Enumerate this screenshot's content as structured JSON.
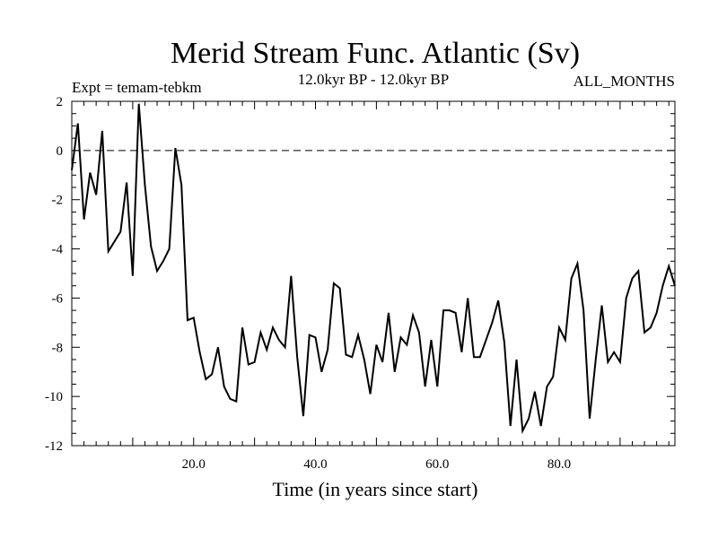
{
  "chart_data": {
    "type": "line",
    "title": "Merid Stream Func. Atlantic (Sv)",
    "subtitle_left": "Expt = temam-tebkm",
    "subtitle_center": "12.0kyr BP - 12.0kyr BP",
    "subtitle_right": "ALL_MONTHS",
    "xlabel": "Time (in years since start)",
    "ylabel": "",
    "xlim": [
      0,
      99
    ],
    "ylim": [
      -12,
      2
    ],
    "x_ticks": [
      {
        "value": 20,
        "label": "20.0"
      },
      {
        "value": 40,
        "label": "40.0"
      },
      {
        "value": 60,
        "label": "60.0"
      },
      {
        "value": 80,
        "label": "80.0"
      }
    ],
    "y_ticks": [
      {
        "value": 2,
        "label": "2"
      },
      {
        "value": 0,
        "label": "0"
      },
      {
        "value": -2,
        "label": "-2"
      },
      {
        "value": -4,
        "label": "-4"
      },
      {
        "value": -6,
        "label": "-6"
      },
      {
        "value": -8,
        "label": "-8"
      },
      {
        "value": -10,
        "label": "-10"
      },
      {
        "value": -12,
        "label": "-12"
      }
    ],
    "reference_line": 0,
    "series": [
      {
        "name": "Merid Stream Func. Atlantic",
        "color": "#000000",
        "x": [
          0,
          1,
          2,
          3,
          4,
          5,
          6,
          7,
          8,
          9,
          10,
          11,
          12,
          13,
          14,
          15,
          16,
          17,
          18,
          19,
          20,
          21,
          22,
          23,
          24,
          25,
          26,
          27,
          28,
          29,
          30,
          31,
          32,
          33,
          34,
          35,
          36,
          37,
          38,
          39,
          40,
          41,
          42,
          43,
          44,
          45,
          46,
          47,
          48,
          49,
          50,
          51,
          52,
          53,
          54,
          55,
          56,
          57,
          58,
          59,
          60,
          61,
          62,
          63,
          64,
          65,
          66,
          67,
          68,
          69,
          70,
          71,
          72,
          73,
          74,
          75,
          76,
          77,
          78,
          79,
          80,
          81,
          82,
          83,
          84,
          85,
          86,
          87,
          88,
          89,
          90,
          91,
          92,
          93,
          94,
          95,
          96,
          97,
          98,
          99
        ],
        "values": [
          -0.8,
          1.1,
          -2.8,
          -0.9,
          -1.8,
          0.8,
          -4.1,
          -3.7,
          -3.3,
          -1.3,
          -5.1,
          1.9,
          -1.4,
          -3.9,
          -4.9,
          -4.5,
          -4.0,
          0.1,
          -1.4,
          -6.9,
          -6.8,
          -8.2,
          -9.3,
          -9.1,
          -8.0,
          -9.6,
          -10.1,
          -10.2,
          -7.2,
          -8.7,
          -8.6,
          -7.4,
          -8.1,
          -7.2,
          -7.7,
          -8.0,
          -5.1,
          -8.4,
          -10.8,
          -7.5,
          -7.6,
          -9.0,
          -8.1,
          -5.4,
          -5.6,
          -8.3,
          -8.4,
          -7.5,
          -8.5,
          -9.9,
          -7.9,
          -8.6,
          -6.6,
          -9.0,
          -7.6,
          -7.9,
          -6.7,
          -7.4,
          -9.6,
          -7.7,
          -9.6,
          -6.5,
          -6.5,
          -6.6,
          -8.2,
          -6.0,
          -8.4,
          -8.4,
          -7.7,
          -7.0,
          -6.1,
          -7.8,
          -11.2,
          -8.5,
          -11.4,
          -10.9,
          -9.8,
          -11.2,
          -9.6,
          -9.2,
          -7.2,
          -7.7,
          -5.2,
          -4.6,
          -6.5,
          -10.9,
          -8.5,
          -6.3,
          -8.6,
          -8.2,
          -8.6,
          -6.0,
          -5.2,
          -4.9,
          -7.4,
          -7.2,
          -6.6,
          -5.5,
          -4.7,
          -5.5
        ]
      }
    ]
  }
}
